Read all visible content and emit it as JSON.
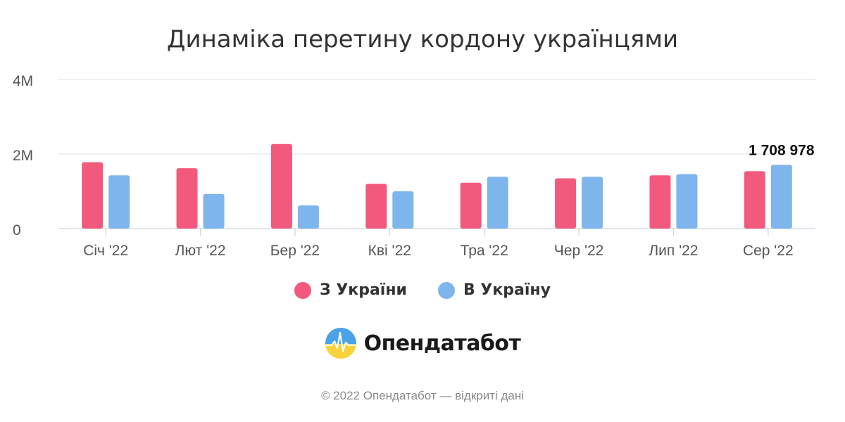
{
  "chart_data": {
    "type": "bar",
    "title": "Динаміка перетину кордону українцями",
    "categories": [
      "Січ '22",
      "Лют '22",
      "Бер '22",
      "Кві '22",
      "Тра '22",
      "Чер '22",
      "Лип '22",
      "Сер '22"
    ],
    "series": [
      {
        "name": "З України",
        "color": "#f25a7d",
        "values": [
          1780000,
          1620000,
          2270000,
          1200000,
          1230000,
          1350000,
          1430000,
          1540000
        ]
      },
      {
        "name": "В Україну",
        "color": "#7eb5ec",
        "values": [
          1430000,
          930000,
          620000,
          1000000,
          1390000,
          1390000,
          1460000,
          1708978
        ]
      }
    ],
    "ylim": [
      0,
      4000000
    ],
    "yticks": [
      {
        "value": 0,
        "label": "0"
      },
      {
        "value": 2000000,
        "label": "2M"
      },
      {
        "value": 4000000,
        "label": "4M"
      }
    ],
    "annotations": [
      {
        "series": 1,
        "index": 7,
        "text": "1 708 978"
      }
    ],
    "grid": true,
    "legend_position": "bottom"
  },
  "brand": {
    "name": "Опендатабот",
    "logo_icon": "opendatabot-logo-icon"
  },
  "footer": {
    "text": "© 2022 Опендатабот — відкриті дані"
  }
}
